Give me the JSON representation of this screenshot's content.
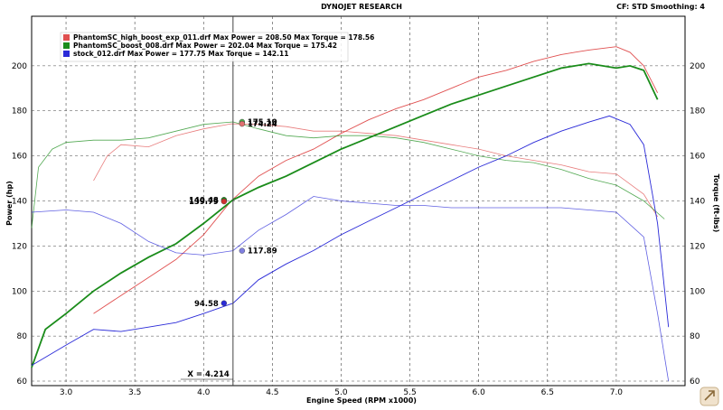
{
  "header": {
    "title": "DYNOJET RESEARCH",
    "settings": "CF: STD  Smoothing: 4"
  },
  "cursor": {
    "label": "X = 4.214",
    "x": 4.214
  },
  "chart_data": {
    "type": "line",
    "xlabel": "Engine Speed (RPM x1000)",
    "ylabel_left": "Power (hp)",
    "ylabel_right": "Torque (ft-lbs)",
    "xlim": [
      2.75,
      7.5
    ],
    "ylim": [
      58,
      222
    ],
    "x_ticks": [
      "3.0",
      "3.5",
      "4.0",
      "4.5",
      "5.0",
      "5.5",
      "6.0",
      "6.5",
      "7.0"
    ],
    "y_ticks": [
      "60",
      "80",
      "100",
      "120",
      "140",
      "160",
      "180",
      "200"
    ],
    "grid": true,
    "legend_position": "top-left",
    "series": [
      {
        "name": "PhantomSC_high_boost_exp_011.drf Max Power = 208.50 Max Torque = 178.56",
        "color": "#e05050",
        "power": [
          [
            3.2,
            90
          ],
          [
            3.4,
            98
          ],
          [
            3.6,
            106
          ],
          [
            3.8,
            114
          ],
          [
            4.0,
            125
          ],
          [
            4.2,
            140
          ],
          [
            4.4,
            151
          ],
          [
            4.6,
            158
          ],
          [
            4.8,
            163
          ],
          [
            5.0,
            170
          ],
          [
            5.2,
            176
          ],
          [
            5.4,
            181
          ],
          [
            5.6,
            185
          ],
          [
            5.8,
            190
          ],
          [
            6.0,
            195
          ],
          [
            6.2,
            198
          ],
          [
            6.4,
            202
          ],
          [
            6.6,
            205
          ],
          [
            6.8,
            207
          ],
          [
            7.0,
            208.5
          ],
          [
            7.1,
            206
          ],
          [
            7.2,
            200
          ],
          [
            7.3,
            188
          ]
        ],
        "torque": [
          [
            3.2,
            149
          ],
          [
            3.3,
            160
          ],
          [
            3.4,
            165
          ],
          [
            3.6,
            164
          ],
          [
            3.8,
            169
          ],
          [
            4.0,
            172
          ],
          [
            4.2,
            174.24
          ],
          [
            4.4,
            174
          ],
          [
            4.6,
            173
          ],
          [
            4.8,
            171
          ],
          [
            5.0,
            171
          ],
          [
            5.2,
            170
          ],
          [
            5.4,
            169
          ],
          [
            5.6,
            167
          ],
          [
            5.8,
            165
          ],
          [
            6.0,
            163
          ],
          [
            6.2,
            160
          ],
          [
            6.4,
            158
          ],
          [
            6.6,
            156
          ],
          [
            6.8,
            153
          ],
          [
            7.0,
            152
          ],
          [
            7.2,
            143
          ],
          [
            7.3,
            133
          ]
        ]
      },
      {
        "name": "PhantomSC_boost_008.drf Max Power = 202.04 Max Torque = 175.42",
        "color": "#1a8c1a",
        "power": [
          [
            2.75,
            66
          ],
          [
            2.85,
            83
          ],
          [
            3.0,
            90
          ],
          [
            3.2,
            100
          ],
          [
            3.4,
            108
          ],
          [
            3.6,
            115
          ],
          [
            3.8,
            121
          ],
          [
            4.0,
            130
          ],
          [
            4.214,
            140.48
          ],
          [
            4.4,
            146
          ],
          [
            4.6,
            151
          ],
          [
            4.8,
            157
          ],
          [
            5.0,
            163
          ],
          [
            5.2,
            168
          ],
          [
            5.4,
            173
          ],
          [
            5.6,
            178
          ],
          [
            5.8,
            183
          ],
          [
            6.0,
            187
          ],
          [
            6.2,
            191
          ],
          [
            6.4,
            195
          ],
          [
            6.6,
            199
          ],
          [
            6.8,
            201
          ],
          [
            6.9,
            200
          ],
          [
            7.0,
            199
          ],
          [
            7.1,
            200
          ],
          [
            7.2,
            198
          ],
          [
            7.3,
            185
          ]
        ],
        "torque": [
          [
            2.75,
            128
          ],
          [
            2.8,
            155
          ],
          [
            2.9,
            163
          ],
          [
            3.0,
            166
          ],
          [
            3.2,
            167
          ],
          [
            3.4,
            167
          ],
          [
            3.6,
            168
          ],
          [
            3.8,
            171
          ],
          [
            4.0,
            174
          ],
          [
            4.214,
            175.1
          ],
          [
            4.4,
            172
          ],
          [
            4.6,
            169
          ],
          [
            4.8,
            168
          ],
          [
            5.0,
            169
          ],
          [
            5.2,
            169
          ],
          [
            5.4,
            168
          ],
          [
            5.6,
            166
          ],
          [
            5.8,
            163
          ],
          [
            6.0,
            160
          ],
          [
            6.2,
            158
          ],
          [
            6.4,
            157
          ],
          [
            6.6,
            154
          ],
          [
            6.8,
            150
          ],
          [
            7.0,
            147
          ],
          [
            7.2,
            140
          ],
          [
            7.35,
            132
          ]
        ]
      },
      {
        "name": "stock_012.drf Max Power = 177.75 Max Torque = 142.11",
        "color": "#2a2ad8",
        "power": [
          [
            2.75,
            67
          ],
          [
            3.0,
            76
          ],
          [
            3.2,
            83
          ],
          [
            3.4,
            82
          ],
          [
            3.6,
            84
          ],
          [
            3.8,
            86
          ],
          [
            4.0,
            90
          ],
          [
            4.214,
            94.58
          ],
          [
            4.4,
            105
          ],
          [
            4.6,
            112
          ],
          [
            4.8,
            118
          ],
          [
            5.0,
            125
          ],
          [
            5.2,
            131
          ],
          [
            5.4,
            137
          ],
          [
            5.6,
            143
          ],
          [
            5.8,
            149
          ],
          [
            6.0,
            155
          ],
          [
            6.2,
            160
          ],
          [
            6.4,
            166
          ],
          [
            6.6,
            171
          ],
          [
            6.8,
            175
          ],
          [
            6.95,
            177.75
          ],
          [
            7.1,
            174
          ],
          [
            7.2,
            165
          ],
          [
            7.3,
            130
          ],
          [
            7.38,
            84
          ]
        ],
        "torque": [
          [
            2.75,
            135
          ],
          [
            3.0,
            136
          ],
          [
            3.2,
            135
          ],
          [
            3.4,
            130
          ],
          [
            3.6,
            122
          ],
          [
            3.8,
            117
          ],
          [
            4.0,
            116
          ],
          [
            4.214,
            117.89
          ],
          [
            4.4,
            127
          ],
          [
            4.6,
            134
          ],
          [
            4.8,
            142
          ],
          [
            5.0,
            140
          ],
          [
            5.2,
            139
          ],
          [
            5.4,
            138
          ],
          [
            5.6,
            138
          ],
          [
            5.8,
            137
          ],
          [
            6.0,
            137
          ],
          [
            6.2,
            137
          ],
          [
            6.4,
            137
          ],
          [
            6.6,
            137
          ],
          [
            6.8,
            136
          ],
          [
            7.0,
            135
          ],
          [
            7.2,
            124
          ],
          [
            7.3,
            90
          ],
          [
            7.38,
            60
          ]
        ]
      }
    ],
    "cursor_labels": [
      {
        "text": "175.10",
        "x": 4.214,
        "y": 175.1,
        "color": "#4caf4c"
      },
      {
        "text": "174.24",
        "x": 4.214,
        "y": 174.24,
        "color": "#e07070"
      },
      {
        "text": "140.48",
        "x": 4.214,
        "y": 140.48,
        "color": "#1a8c1a"
      },
      {
        "text": "139.79",
        "x": 4.214,
        "y": 139.79,
        "color": "#d03030"
      },
      {
        "text": "117.89",
        "x": 4.214,
        "y": 117.89,
        "color": "#8080e0"
      },
      {
        "text": "94.58",
        "x": 4.214,
        "y": 94.58,
        "color": "#2a2ad8"
      }
    ]
  }
}
